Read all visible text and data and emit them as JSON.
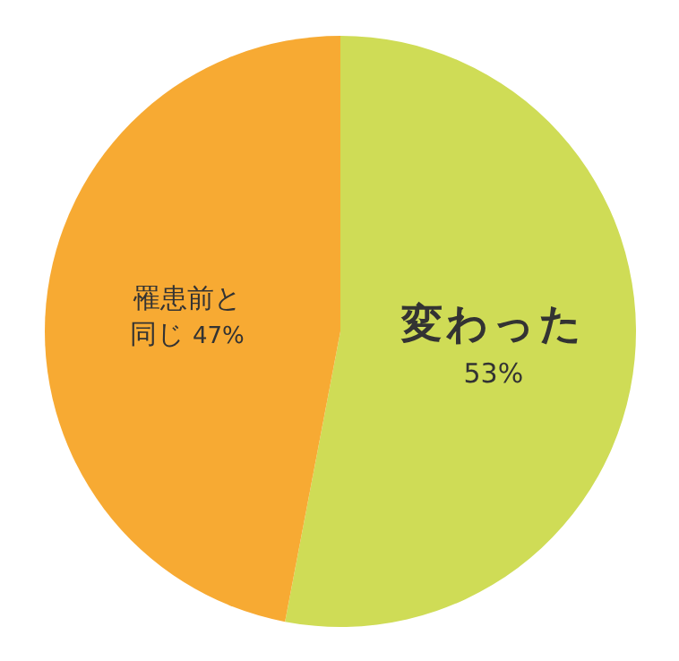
{
  "chart_data": {
    "type": "pie",
    "categories": [
      "変わった",
      "罹患前と同じ"
    ],
    "values": [
      53,
      47
    ],
    "value_labels": [
      "53%",
      "47%"
    ],
    "colors": [
      "#cfdc56",
      "#f7aa33"
    ]
  }
}
